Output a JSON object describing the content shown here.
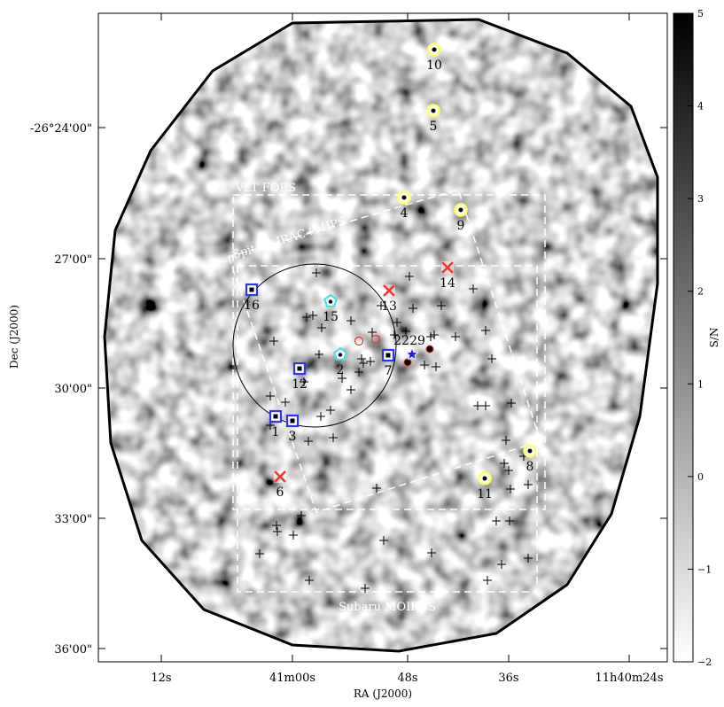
{
  "chart_data": {
    "type": "heatmap",
    "xlabel": "RA (J2000)",
    "ylabel": "Dec (J2000)",
    "x_ticks": [
      "12s",
      "41m00s",
      "48s",
      "36s",
      "11h40m24s"
    ],
    "y_ticks": [
      "-26°24'00\"",
      "27'00\"",
      "30'00\"",
      "33'00\"",
      "36'00\""
    ],
    "colorbar": {
      "label": "S/N",
      "range": [
        -2,
        5
      ],
      "ticks": [
        "5",
        "4",
        "3",
        "2",
        "1",
        "0",
        "−1",
        "−2"
      ],
      "colormap": "grayscale (white = low, black = high)"
    },
    "regions": [
      {
        "name": "VLT FORS",
        "shape": "rectangle",
        "style": "white dashed"
      },
      {
        "name": "Spitzer IRAC+MIPS",
        "shape": "rotated rectangle",
        "style": "white dashed"
      },
      {
        "name": "Subaru MOIRCS",
        "shape": "rectangle",
        "style": "white dashed"
      }
    ],
    "sources": [
      {
        "label": "1",
        "marker": "blue square"
      },
      {
        "label": "2",
        "marker": "cyan pentagon"
      },
      {
        "label": "3",
        "marker": "blue square"
      },
      {
        "label": "4",
        "marker": "yellow circle"
      },
      {
        "label": "5",
        "marker": "yellow circle"
      },
      {
        "label": "6",
        "marker": "red cross"
      },
      {
        "label": "7",
        "marker": "blue square"
      },
      {
        "label": "8",
        "marker": "yellow circle"
      },
      {
        "label": "9",
        "marker": "yellow circle"
      },
      {
        "label": "10",
        "marker": "yellow circle"
      },
      {
        "label": "11",
        "marker": "yellow circle"
      },
      {
        "label": "12",
        "marker": "blue square"
      },
      {
        "label": "13",
        "marker": "red cross"
      },
      {
        "label": "14",
        "marker": "red cross"
      },
      {
        "label": "15",
        "marker": "cyan pentagon"
      },
      {
        "label": "16",
        "marker": "blue square"
      },
      {
        "label": "22",
        "marker": "none"
      },
      {
        "label": "29",
        "marker": "blue star"
      }
    ],
    "colors": {
      "square": "#3030ff",
      "pentagon": "#40e0e0",
      "circle": "#ffff66",
      "cross": "#ff3030",
      "star": "#2020cc"
    }
  }
}
